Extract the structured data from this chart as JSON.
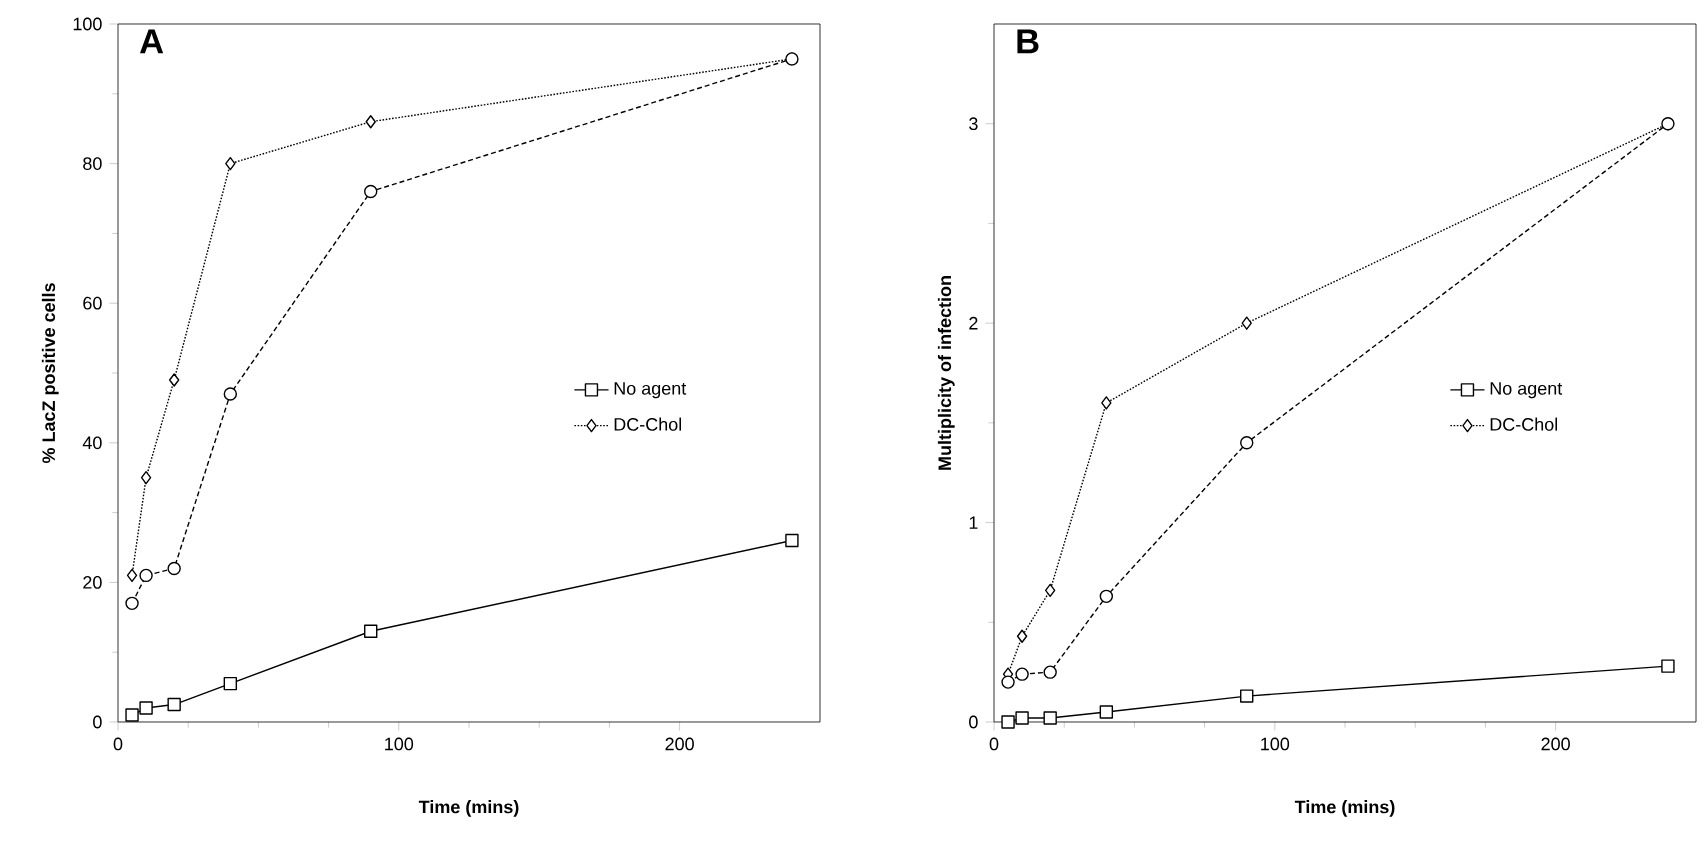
{
  "chart_data": [
    {
      "type": "line",
      "title": "A",
      "xlabel": "Time (mins)",
      "ylabel": "% LacZ positive cells",
      "x": [
        5,
        10,
        20,
        40,
        90,
        240
      ],
      "xlim": [
        0,
        250
      ],
      "xticks": [
        0,
        100,
        200
      ],
      "ylim": [
        0,
        100
      ],
      "yticks": [
        0,
        20,
        40,
        60,
        80,
        100
      ],
      "legend": "right",
      "series": [
        {
          "name": "No agent",
          "color": "#000000",
          "marker": "square",
          "line_style": "solid",
          "values": [
            1,
            2,
            2.5,
            5.5,
            13,
            26
          ]
        },
        {
          "name": "DC-Chol",
          "color": "#000000",
          "marker": "diamond",
          "line_style": "dotted",
          "values": [
            21,
            35,
            49,
            80,
            86,
            95
          ]
        },
        {
          "color": "#000000",
          "marker": "circle",
          "line_style": "dashed",
          "values": [
            17,
            21,
            22,
            47,
            76,
            95
          ]
        }
      ]
    },
    {
      "type": "line",
      "title": "B",
      "xlabel": "Time (mins)",
      "ylabel": "Multiplicity of infection",
      "x": [
        5,
        10,
        20,
        40,
        90,
        240
      ],
      "xlim": [
        0,
        250
      ],
      "xticks": [
        0,
        100,
        200
      ],
      "ylim": [
        0,
        3.5
      ],
      "yticks": [
        0,
        1,
        2,
        3
      ],
      "legend": "right",
      "series": [
        {
          "name": "No agent",
          "color": "#000000",
          "marker": "square",
          "line_style": "solid",
          "values": [
            0,
            0.02,
            0.02,
            0.05,
            0.13,
            0.28
          ]
        },
        {
          "name": "DC-Chol",
          "color": "#000000",
          "marker": "diamond",
          "line_style": "dotted",
          "values": [
            0.24,
            0.43,
            0.66,
            1.6,
            2.0,
            3.0
          ]
        },
        {
          "color": "#000000",
          "marker": "circle",
          "line_style": "dashed",
          "values": [
            0.2,
            0.24,
            0.25,
            0.63,
            1.4,
            3.0
          ]
        }
      ]
    }
  ]
}
